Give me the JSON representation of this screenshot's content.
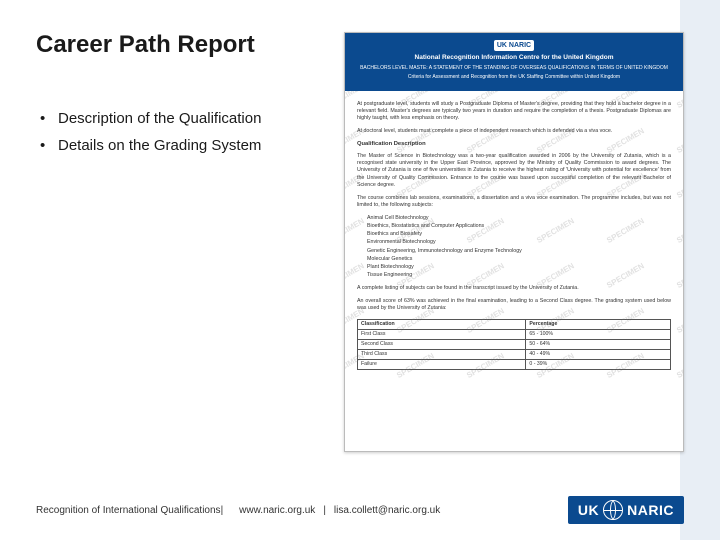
{
  "title": "Career Path Report",
  "bullets": [
    "Description of the Qualification",
    "Details on the Grading System"
  ],
  "document_preview": {
    "watermark_text": "SPECIMEN",
    "header": {
      "logo_text": "UK NARIC",
      "line1": "National Recognition Information Centre for the United Kingdom",
      "line2": "BACHELORS LEVEL MASTE: A STATEMENT OF THE STANDING OF OVERSEAS QUALIFICATIONS IN TERMS OF UNITED KINGDOM",
      "line3": "Criteria for Assessment and Recognition from the UK Staffing Committee within United Kingdom"
    },
    "body": {
      "para1": "At postgraduate level, students will study a Postgraduate Diploma of Master's degree, providing that they hold a bachelor degree in a relevant field. Master's degrees are typically two years in duration and require the completion of a thesis. Postgraduate Diplomas are highly taught, with less emphasis on theory.",
      "para2": "At doctoral level, students must complete a piece of independent research which is defended via a viva voce.",
      "section_heading": "Qualification Description",
      "para3": "The Master of Science in Biotechnology was a two-year qualification awarded in 2006 by the University of Zutania, which is a recognised state university in the Upper East Province, approved by the Ministry of Quality Commission to award degrees. The University of Zutania is one of five universities in Zutania to receive the highest rating of 'University with potential for excellence' from the University of Quality Commission. Entrance to the course was based upon successful completion of the relevant Bachelor of Science degree.",
      "para4": "The course combines lab sessions, examinations, a dissertation and a viva voce examination. The programme includes, but was not limited to, the following subjects:",
      "subjects": [
        "Animal Cell Biotechnology",
        "Bioethics, Biostatistics and Computer Applications",
        "Bioethics and Biosafety",
        "Environmental Biotechnology",
        "Genetic Engineering, Immunotechnology and Enzyme Technology",
        "Molecular Genetics",
        "Plant Biotechnology",
        "Tissue Engineering"
      ],
      "para5": "A complete listing of subjects can be found in the transcript issued by the University of Zutania.",
      "para6": "An overall score of 63% was achieved in the final examination, leading to a Second Class degree. The grading system used below was used by the University of Zutania:",
      "grading_table": {
        "columns": [
          "Classification",
          "Percentage"
        ],
        "rows": [
          [
            "First Class",
            "65 - 100%"
          ],
          [
            "Second Class",
            "50 - 64%"
          ],
          [
            "Third Class",
            "40 - 49%"
          ],
          [
            "Failure",
            "0 - 39%"
          ]
        ]
      }
    },
    "colors": {
      "header_bg": "#0b4a8f",
      "header_text": "#ffffff",
      "body_text": "#333333",
      "border": "#555555"
    }
  },
  "footer": {
    "text1": "Recognition of International Qualifications",
    "text2": "www.naric.org.uk",
    "text3": "lisa.collett@naric.org.uk",
    "logo_uk": "UK",
    "logo_naric": "NARIC",
    "logo_bg": "#0b4a8f"
  }
}
